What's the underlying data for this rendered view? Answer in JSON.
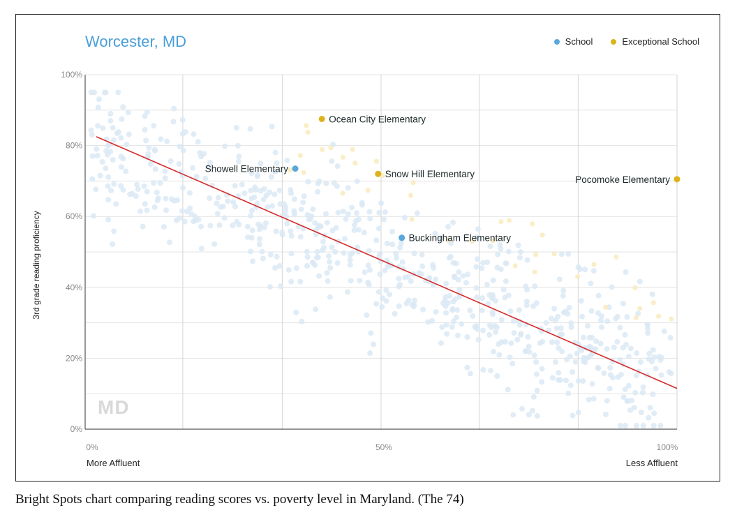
{
  "chart_data": {
    "type": "scatter",
    "title": "Worcester, MD",
    "xlabel": "",
    "ylabel": "3rd grade reading proficiency",
    "x_left_label": "More Affluent",
    "x_right_label": "Less Affluent",
    "xlim": [
      0,
      100
    ],
    "ylim": [
      0,
      100
    ],
    "x_ticks": [
      {
        "value": 0,
        "label": "0%"
      },
      {
        "value": 50,
        "label": "50%"
      },
      {
        "value": 100,
        "label": "100%"
      }
    ],
    "y_ticks": [
      {
        "value": 0,
        "label": "0%"
      },
      {
        "value": 20,
        "label": "20%"
      },
      {
        "value": 40,
        "label": "40%"
      },
      {
        "value": 60,
        "label": "60%"
      },
      {
        "value": 80,
        "label": "80%"
      },
      {
        "value": 100,
        "label": "100%"
      }
    ],
    "legend": [
      {
        "name": "School",
        "color": "#5aa7dc"
      },
      {
        "name": "Exceptional School",
        "color": "#dcb41a"
      }
    ],
    "colors": {
      "school": "#5aa7dc",
      "exceptional": "#dcb41a",
      "background_school": "#dbe9f5",
      "background_exceptional": "#f8ecc2",
      "trend": "#d42b2b",
      "title": "#4a9fd8"
    },
    "trend_line": {
      "x": [
        0,
        100
      ],
      "y": [
        82.5,
        11.5
      ]
    },
    "highlighted_points": [
      {
        "name": "Ocean City Elementary",
        "x": 40,
        "y": 87.5,
        "exceptional": true,
        "label_side": "right"
      },
      {
        "name": "Showell Elementary",
        "x": 35.5,
        "y": 73.5,
        "exceptional": false,
        "label_side": "left"
      },
      {
        "name": "Snow Hill Elementary",
        "x": 49.5,
        "y": 72,
        "exceptional": true,
        "label_side": "right"
      },
      {
        "name": "Pocomoke Elementary",
        "x": 100,
        "y": 70.5,
        "exceptional": true,
        "label_side": "left"
      },
      {
        "name": "Buckingham Elementary",
        "x": 53.5,
        "y": 54,
        "exceptional": false,
        "label_side": "right"
      }
    ],
    "background_points_note": "Faded statewide school points (approximate)",
    "watermark": "MD"
  },
  "caption": "Bright Spots chart comparing reading scores vs. poverty level in Maryland. (The 74)"
}
